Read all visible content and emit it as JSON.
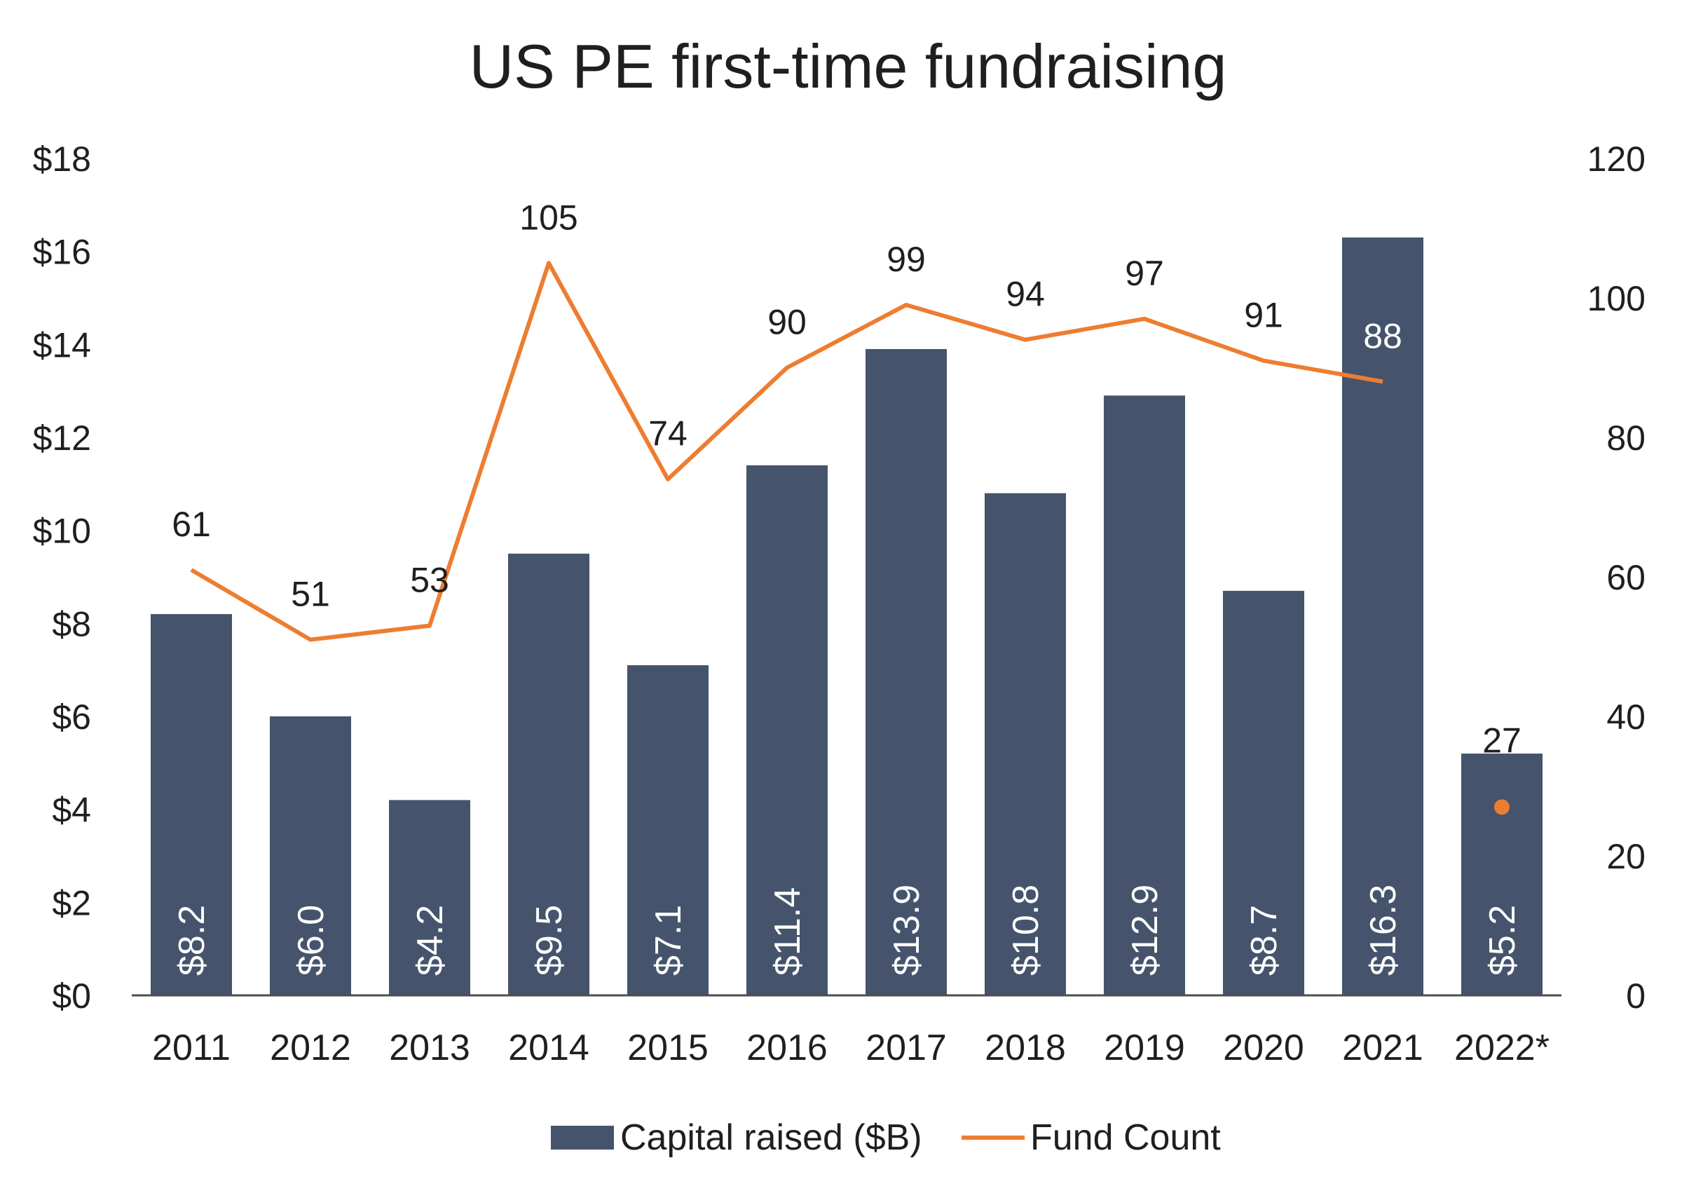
{
  "chart_data": {
    "type": "bar",
    "title": "US PE first-time fundraising",
    "categories": [
      "2011",
      "2012",
      "2013",
      "2014",
      "2015",
      "2016",
      "2017",
      "2018",
      "2019",
      "2020",
      "2021",
      "2022*"
    ],
    "series": [
      {
        "name": "Capital raised ($B)",
        "type": "bar",
        "axis": "left",
        "color": "#45546c",
        "values": [
          8.2,
          6.0,
          4.2,
          9.5,
          7.1,
          11.4,
          13.9,
          10.8,
          12.9,
          8.7,
          16.3,
          5.2
        ],
        "labels": [
          "$8.2",
          "$6.0",
          "$4.2",
          "$9.5",
          "$7.1",
          "$11.4",
          "$13.9",
          "$10.8",
          "$12.9",
          "$8.7",
          "$16.3",
          "$5.2"
        ]
      },
      {
        "name": "Fund Count",
        "type": "line",
        "axis": "right",
        "color": "#ed7d31",
        "values": [
          61,
          51,
          53,
          105,
          74,
          90,
          99,
          94,
          97,
          91,
          88,
          27
        ],
        "labels": [
          "61",
          "51",
          "53",
          "105",
          "74",
          "90",
          "99",
          "94",
          "97",
          "91",
          "88",
          "27"
        ],
        "note": "2022* shown as a separate point, not connected to the line"
      }
    ],
    "y_left": {
      "ylim": [
        0,
        18
      ],
      "ticks": [
        0,
        2,
        4,
        6,
        8,
        10,
        12,
        14,
        16,
        18
      ],
      "tick_labels": [
        "$0",
        "$2",
        "$4",
        "$6",
        "$8",
        "$10",
        "$12",
        "$14",
        "$16",
        "$18"
      ]
    },
    "y_right": {
      "ylim": [
        0,
        120
      ],
      "ticks": [
        0,
        20,
        40,
        60,
        80,
        100,
        120
      ],
      "tick_labels": [
        "0",
        "20",
        "40",
        "60",
        "80",
        "100",
        "120"
      ]
    },
    "grid": false,
    "legend": {
      "position": "bottom"
    }
  }
}
